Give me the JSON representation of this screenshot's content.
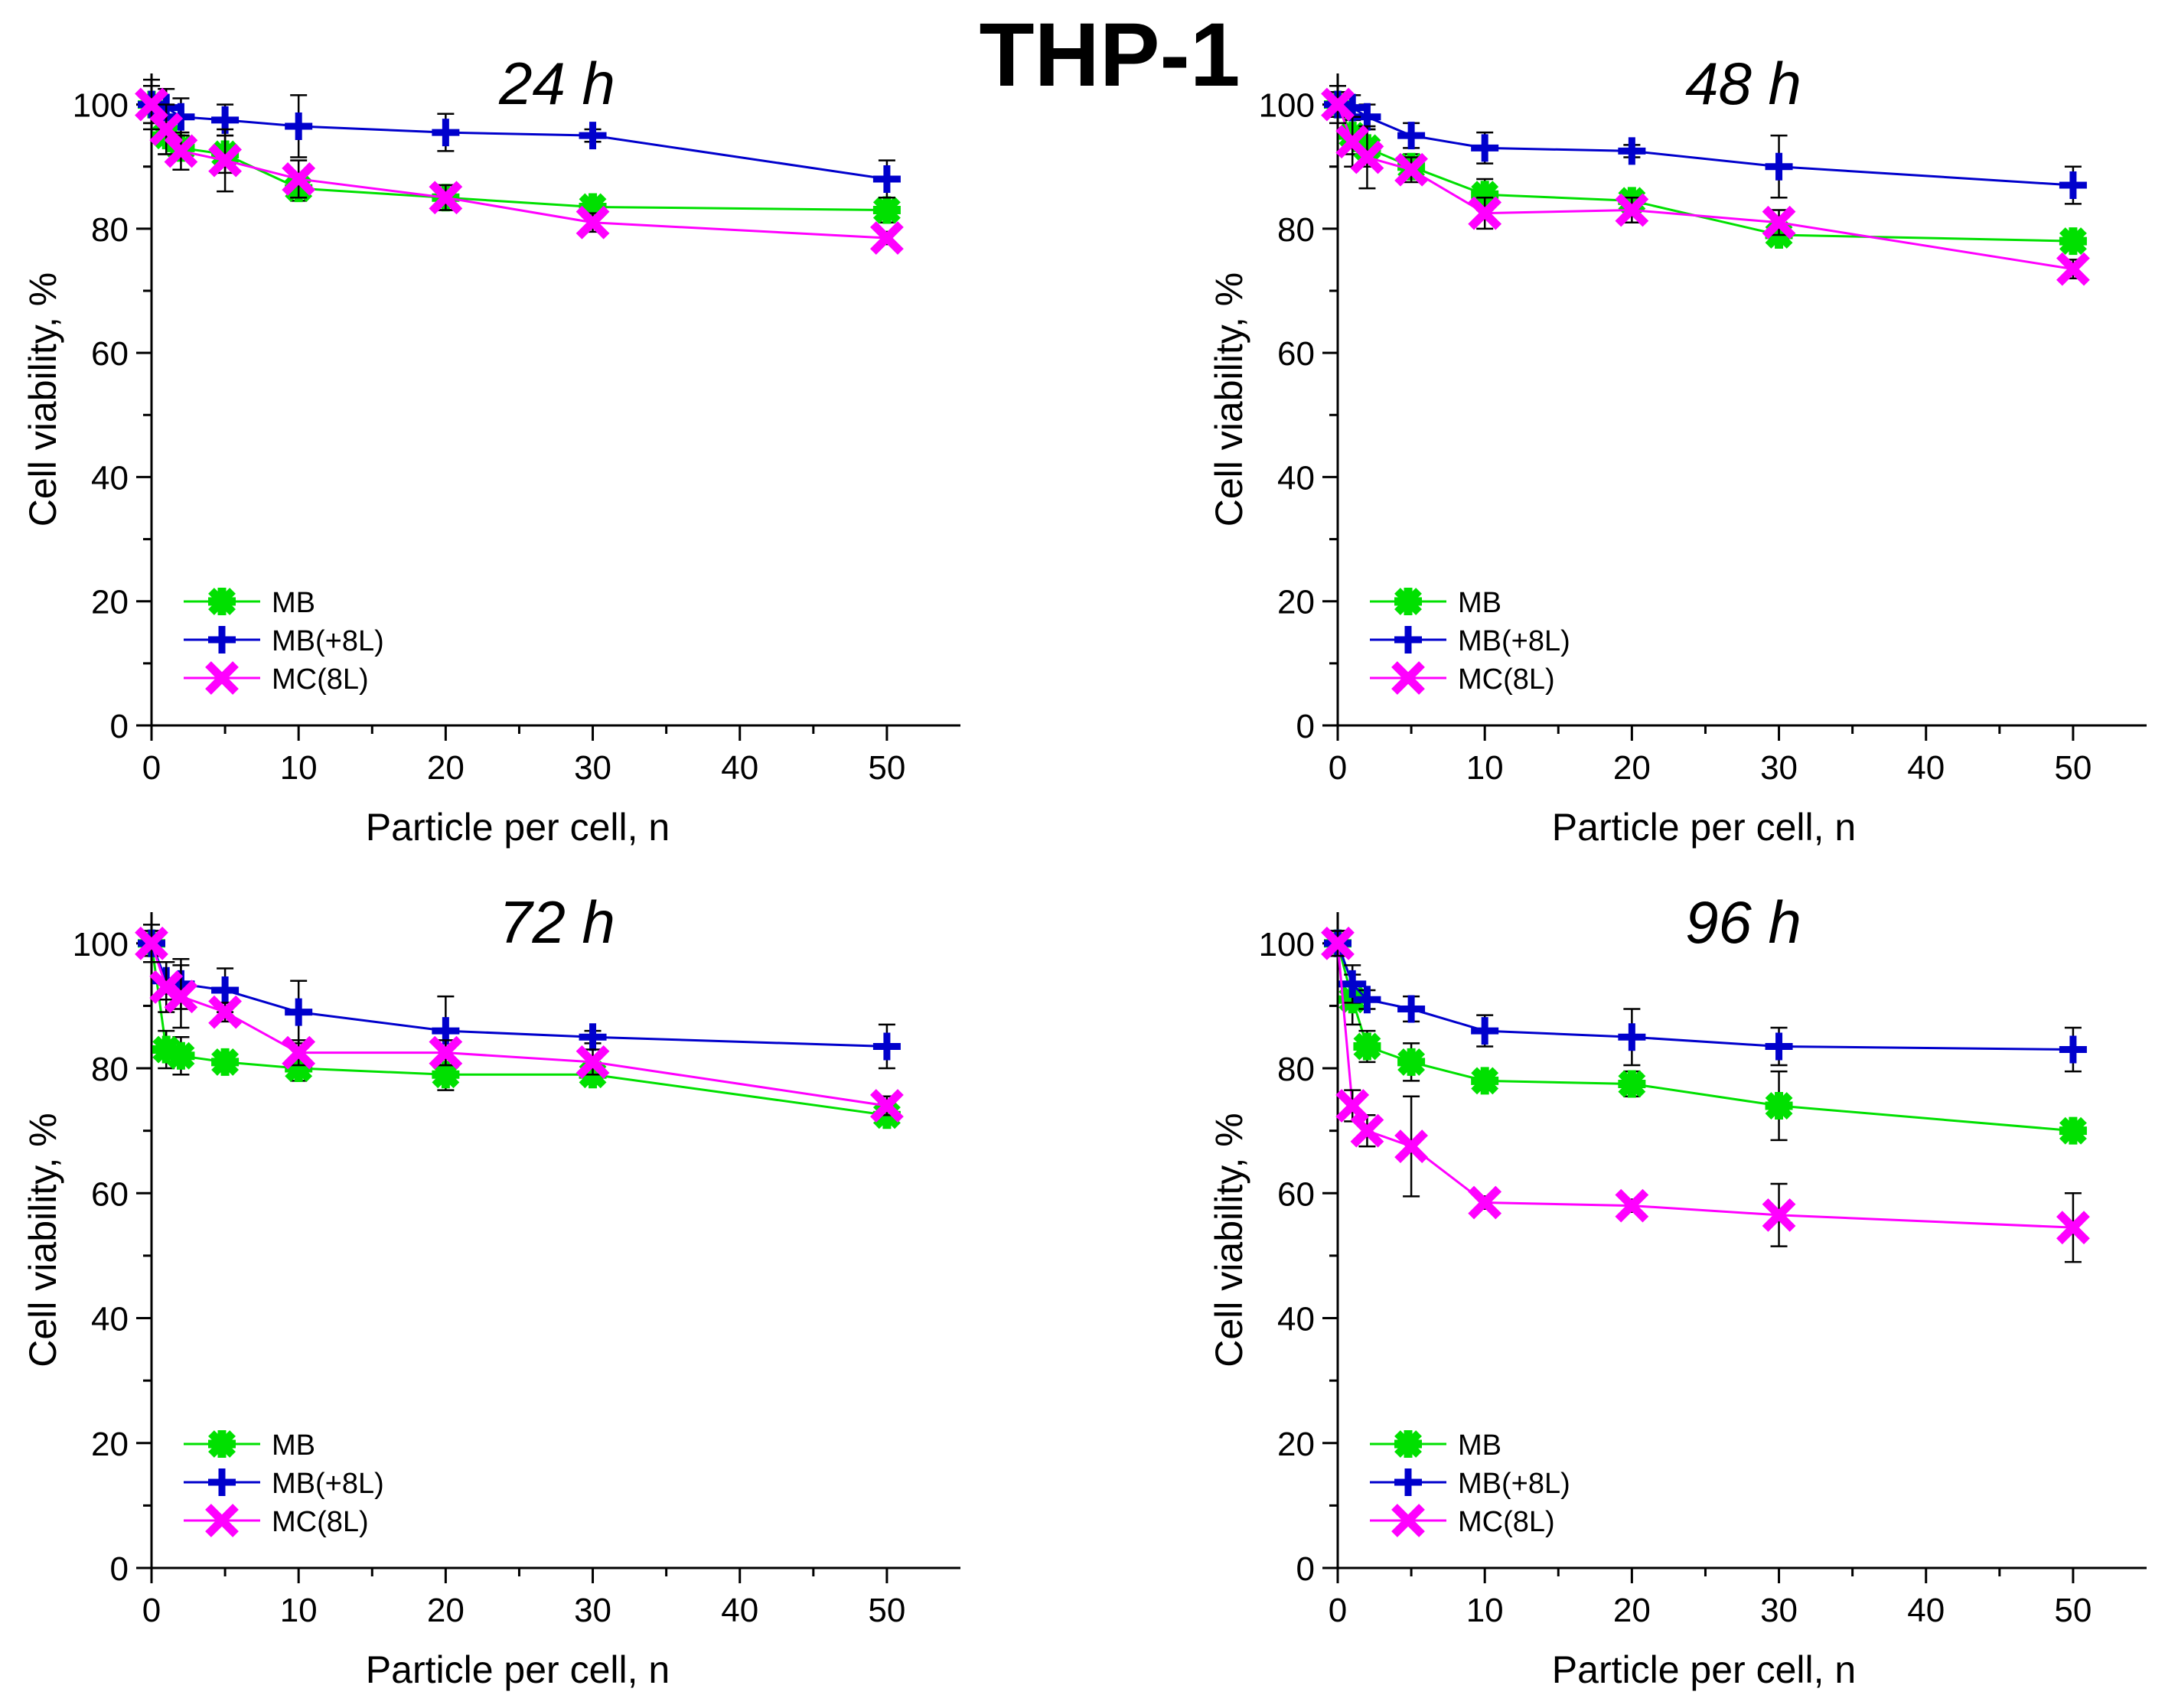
{
  "figure": {
    "title": "THP-1"
  },
  "chart_data": [
    {
      "type": "line",
      "title": "24 h",
      "xlabel": "Particle per cell, n",
      "ylabel": "Cell viability, %",
      "xlim": [
        0,
        55
      ],
      "ylim": [
        0,
        105
      ],
      "xticks": [
        0,
        10,
        20,
        30,
        40,
        50
      ],
      "yticks": [
        0,
        20,
        40,
        60,
        80,
        100
      ],
      "legend_position": "bottom-left",
      "x": [
        0,
        1,
        2,
        5,
        10,
        20,
        30,
        50
      ],
      "series": [
        {
          "name": "MB",
          "color": "#00e000",
          "marker": "star",
          "values": [
            100,
            95,
            93,
            92,
            86.5,
            85,
            83.5,
            83
          ],
          "err": [
            3,
            3,
            2,
            3,
            2,
            2,
            1.5,
            2
          ]
        },
        {
          "name": "MB(+8L)",
          "color": "#0000cc",
          "marker": "plus",
          "values": [
            100,
            99.5,
            98,
            97.5,
            96.5,
            95.5,
            95,
            88
          ],
          "err": [
            3,
            3,
            3,
            2.5,
            5,
            3,
            1,
            3
          ]
        },
        {
          "name": "MC(8L)",
          "color": "#ff00ff",
          "marker": "x",
          "values": [
            100,
            96,
            92.5,
            91,
            88,
            85,
            81,
            78.5
          ],
          "err": [
            4,
            4,
            3,
            5,
            3,
            2,
            1.5,
            1
          ]
        }
      ]
    },
    {
      "type": "line",
      "title": "48 h",
      "xlabel": "Particle per cell, n",
      "ylabel": "Cell viability, %",
      "xlim": [
        0,
        55
      ],
      "ylim": [
        0,
        105
      ],
      "xticks": [
        0,
        10,
        20,
        30,
        40,
        50
      ],
      "yticks": [
        0,
        20,
        40,
        60,
        80,
        100
      ],
      "legend_position": "bottom-left",
      "x": [
        0,
        1,
        2,
        5,
        10,
        20,
        30,
        50
      ],
      "series": [
        {
          "name": "MB",
          "color": "#00e000",
          "marker": "star",
          "values": [
            100,
            95,
            93,
            90,
            85.5,
            84.5,
            79,
            78
          ],
          "err": [
            2,
            3,
            3,
            2,
            2.5,
            1.5,
            1.5,
            1.5
          ]
        },
        {
          "name": "MB(+8L)",
          "color": "#0000cc",
          "marker": "plus",
          "values": [
            100,
            99.5,
            98,
            95,
            93,
            92.5,
            90,
            87
          ],
          "err": [
            2,
            2,
            2,
            2,
            2.5,
            1,
            5,
            3
          ]
        },
        {
          "name": "MC(8L)",
          "color": "#ff00ff",
          "marker": "x",
          "values": [
            100,
            94,
            91.5,
            89.5,
            82.5,
            83,
            81,
            73.5
          ],
          "err": [
            3,
            4,
            5,
            2,
            2.5,
            2,
            2,
            1.5
          ]
        }
      ]
    },
    {
      "type": "line",
      "title": "72 h",
      "xlabel": "Particle per cell, n",
      "ylabel": "Cell viability, %",
      "xlim": [
        0,
        55
      ],
      "ylim": [
        0,
        105
      ],
      "xticks": [
        0,
        10,
        20,
        30,
        40,
        50
      ],
      "yticks": [
        0,
        20,
        40,
        60,
        80,
        100
      ],
      "legend_position": "bottom-left",
      "x": [
        0,
        1,
        2,
        5,
        10,
        20,
        30,
        50
      ],
      "series": [
        {
          "name": "MB",
          "color": "#00e000",
          "marker": "star",
          "values": [
            100,
            83,
            82,
            81,
            80,
            79,
            79,
            72.5
          ],
          "err": [
            2,
            3,
            3,
            1.5,
            2,
            2.5,
            1.5,
            1.5
          ]
        },
        {
          "name": "MB(+8L)",
          "color": "#0000cc",
          "marker": "plus",
          "values": [
            100,
            94,
            93.5,
            92.5,
            89,
            86,
            85,
            83.5
          ],
          "err": [
            2,
            3,
            4,
            3.5,
            5,
            5.5,
            1,
            3.5
          ]
        },
        {
          "name": "MC(8L)",
          "color": "#ff00ff",
          "marker": "x",
          "values": [
            100,
            93,
            91.5,
            89,
            82.5,
            82.5,
            81,
            74
          ],
          "err": [
            3,
            4,
            5,
            1.5,
            2,
            2,
            2,
            1.5
          ]
        }
      ]
    },
    {
      "type": "line",
      "title": "96 h",
      "xlabel": "Particle per cell, n",
      "ylabel": "Cell viability, %",
      "xlim": [
        0,
        55
      ],
      "ylim": [
        0,
        105
      ],
      "xticks": [
        0,
        10,
        20,
        30,
        40,
        50
      ],
      "yticks": [
        0,
        20,
        40,
        60,
        80,
        100
      ],
      "legend_position": "bottom-left",
      "x": [
        0,
        1,
        2,
        5,
        10,
        20,
        30,
        50
      ],
      "series": [
        {
          "name": "MB",
          "color": "#00e000",
          "marker": "star",
          "values": [
            100,
            91,
            83.5,
            81,
            78,
            77.5,
            74,
            70
          ],
          "err": [
            2,
            4,
            2.5,
            3,
            1.5,
            2,
            5.5,
            1
          ]
        },
        {
          "name": "MB(+8L)",
          "color": "#0000cc",
          "marker": "plus",
          "values": [
            100,
            93.5,
            91,
            89.5,
            86,
            85,
            83.5,
            83
          ],
          "err": [
            2,
            3,
            1.5,
            2,
            2.5,
            4.5,
            3,
            3.5
          ]
        },
        {
          "name": "MC(8L)",
          "color": "#ff00ff",
          "marker": "x",
          "values": [
            100,
            74,
            70,
            67.5,
            58.5,
            58,
            56.5,
            54.5
          ],
          "err": [
            2,
            2.5,
            2.5,
            8,
            1,
            1,
            5,
            5.5
          ]
        }
      ]
    }
  ]
}
